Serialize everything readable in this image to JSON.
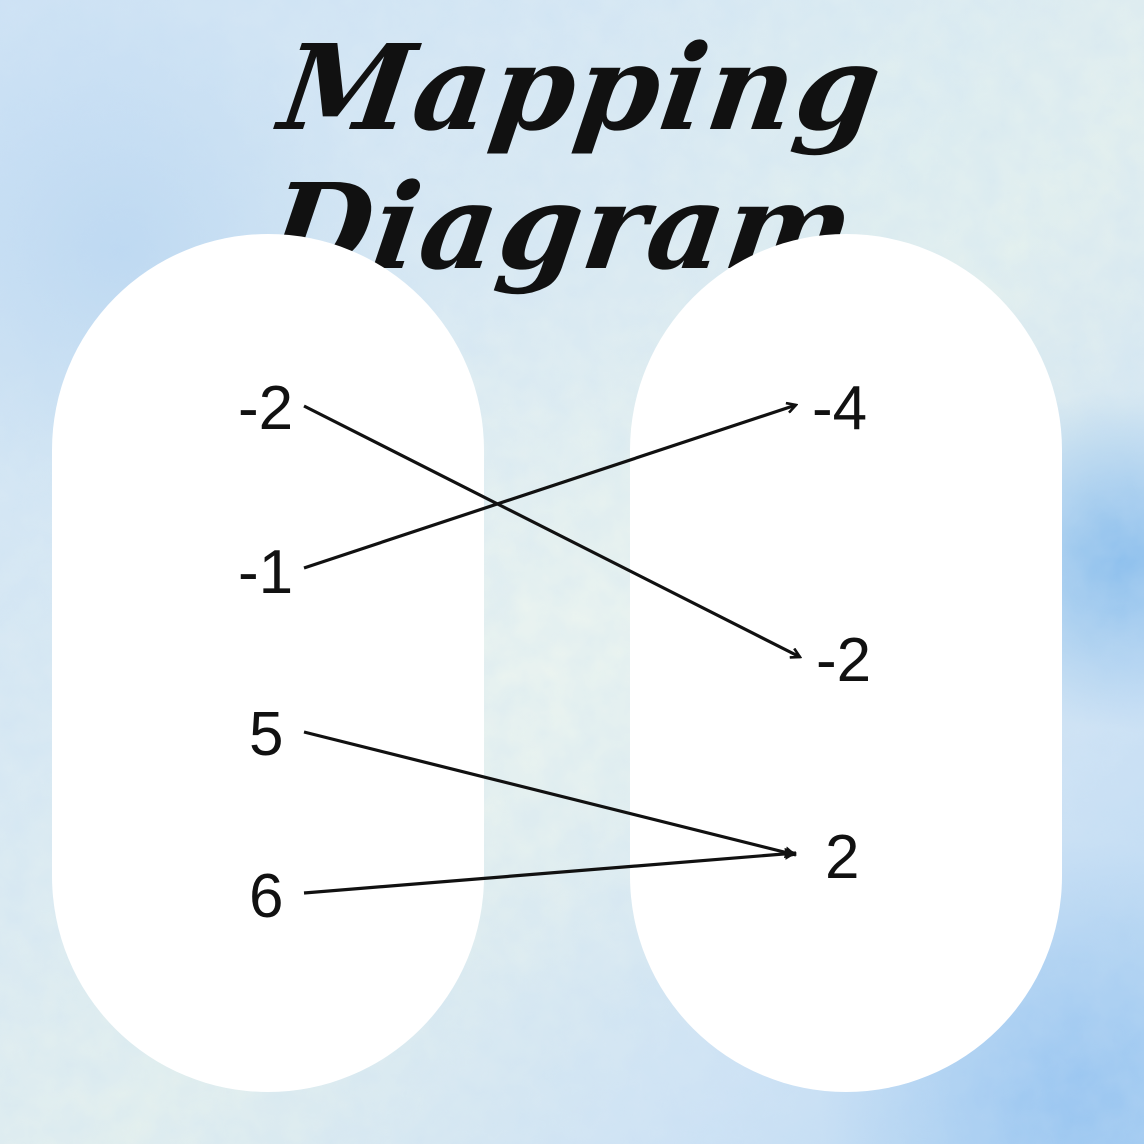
{
  "title": "Mapping Diagram",
  "domain": [
    "-2",
    "-1",
    "5",
    "6"
  ],
  "range": [
    "-4",
    "-2",
    "2"
  ],
  "mappings": [
    {
      "from": "-2",
      "to": "-2"
    },
    {
      "from": "-1",
      "to": "-4"
    },
    {
      "from": "5",
      "to": "2"
    },
    {
      "from": "6",
      "to": "2"
    }
  ],
  "colors": {
    "oval": "#ffffff",
    "ink": "#111111",
    "background": "#cfe3f5"
  }
}
